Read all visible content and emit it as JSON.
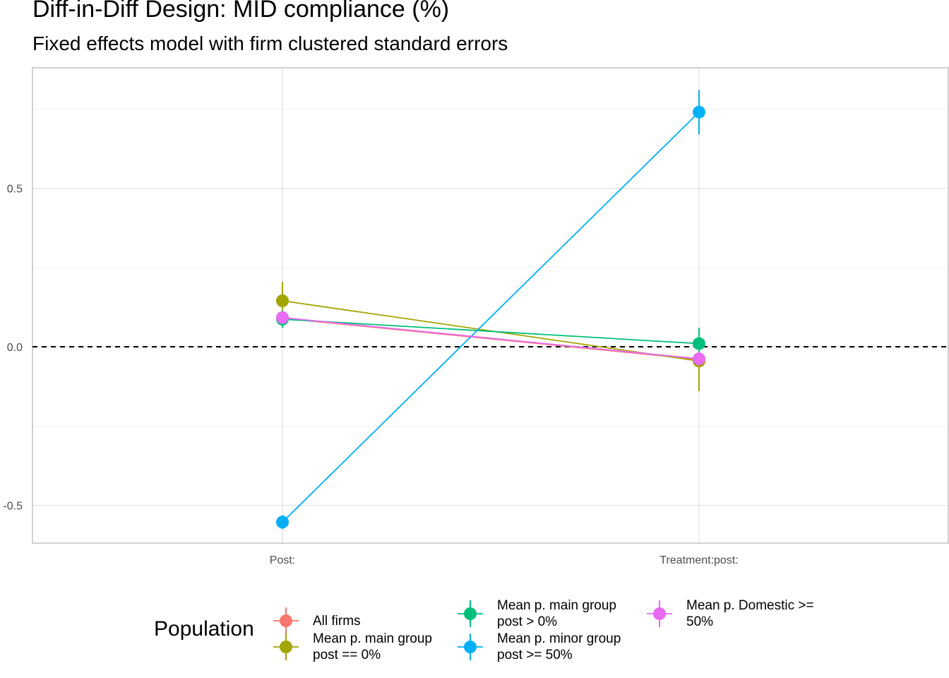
{
  "chart_data": {
    "type": "scatter",
    "title": "Diff-in-Diff Design: MID compliance (%)",
    "subtitle": "Fixed effects model with firm clustered standard errors",
    "xlabel": "",
    "ylabel": "",
    "categories": [
      "Post:",
      "Treatment:post:"
    ],
    "ylim": [
      -0.62,
      0.88
    ],
    "yticks": [
      -0.5,
      0.0,
      0.5
    ],
    "ytick_labels": [
      "-0.5",
      "0.0",
      "0.5"
    ],
    "reference_line": {
      "y": 0.0,
      "style": "dashed"
    },
    "grid": true,
    "legend_title": "Population",
    "legend_position": "bottom",
    "series": [
      {
        "name": "All firms",
        "color": "#F8766D",
        "values": [
          0.09,
          -0.04
        ],
        "ci_low": [
          0.06,
          -0.09
        ],
        "ci_high": [
          0.12,
          0.01
        ]
      },
      {
        "name": "Mean p. main group\npost == 0%",
        "color": "#A3A500",
        "values": [
          0.145,
          -0.045
        ],
        "ci_low": [
          0.085,
          -0.14
        ],
        "ci_high": [
          0.205,
          0.05
        ]
      },
      {
        "name": "Mean p. main group\npost > 0%",
        "color": "#00BF7D",
        "values": [
          0.087,
          0.01
        ],
        "ci_low": [
          0.06,
          -0.04
        ],
        "ci_high": [
          0.115,
          0.06
        ]
      },
      {
        "name": "Mean p. minor group\npost >= 50%",
        "color": "#00B0F6",
        "values": [
          -0.553,
          0.74
        ],
        "ci_low": [
          -0.575,
          0.67
        ],
        "ci_high": [
          -0.531,
          0.81
        ]
      },
      {
        "name": "Mean p. Domestic >=\n50%",
        "color": "#E76BF3",
        "values": [
          0.092,
          -0.038
        ],
        "ci_low": [
          0.075,
          -0.06
        ],
        "ci_high": [
          0.11,
          -0.016
        ]
      }
    ]
  }
}
